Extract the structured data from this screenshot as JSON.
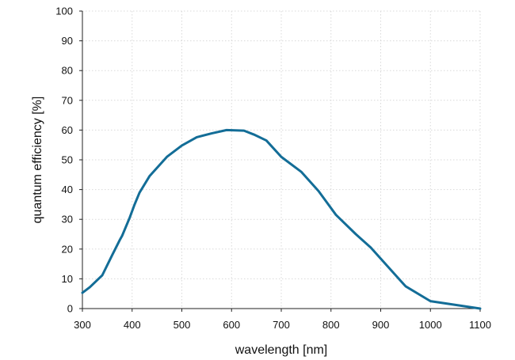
{
  "chart_data": {
    "type": "line",
    "title": "",
    "xlabel": "wavelength [nm]",
    "ylabel": "quantum efficiency [%]",
    "xlim": [
      300,
      1100
    ],
    "ylim": [
      0,
      100
    ],
    "x_ticks": [
      300,
      400,
      500,
      600,
      700,
      800,
      900,
      1000,
      1100
    ],
    "y_ticks": [
      0,
      10,
      20,
      30,
      40,
      50,
      60,
      70,
      80,
      90,
      100
    ],
    "grid": true,
    "series": [
      {
        "name": "quantum efficiency",
        "color": "#136d97",
        "x": [
          300,
          315,
          340,
          360,
          375,
          380,
          395,
          405,
          415,
          435,
          470,
          500,
          530,
          560,
          590,
          625,
          645,
          670,
          700,
          740,
          775,
          810,
          850,
          880,
          915,
          950,
          1000,
          1060,
          1100
        ],
        "y": [
          5.3,
          7.2,
          11.2,
          18.0,
          23.0,
          24.5,
          30.5,
          35.0,
          39.0,
          44.5,
          51.0,
          54.8,
          57.6,
          58.9,
          60.0,
          59.8,
          58.5,
          56.5,
          51.0,
          46.0,
          39.5,
          31.5,
          25.0,
          20.5,
          14.0,
          7.5,
          2.5,
          1.0,
          0.0
        ]
      }
    ]
  }
}
